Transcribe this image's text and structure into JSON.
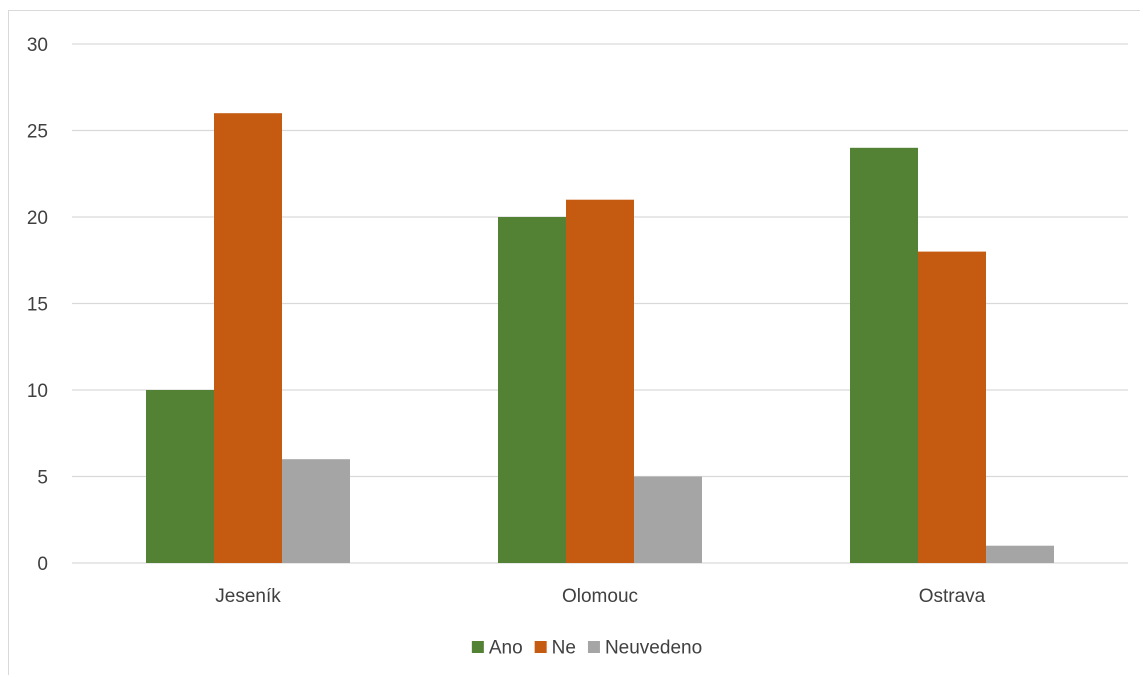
{
  "chart_data": {
    "type": "bar",
    "title": "",
    "xlabel": "",
    "ylabel": "",
    "categories": [
      "Jeseník",
      "Olomouc",
      "Ostrava"
    ],
    "series": [
      {
        "name": "Ano",
        "values": [
          10,
          20,
          24
        ],
        "color": "#548235"
      },
      {
        "name": "Ne",
        "values": [
          26,
          21,
          18
        ],
        "color": "#c55a11"
      },
      {
        "name": "Neuvedeno",
        "values": [
          6,
          5,
          1
        ],
        "color": "#a5a5a5"
      }
    ],
    "ylim": [
      0,
      30
    ],
    "yticks": [
      0,
      5,
      10,
      15,
      20,
      25,
      30
    ],
    "grid": true,
    "legend": "bottom",
    "colors": {
      "grid": "#d9d9d9",
      "axis_text": "#404040"
    }
  }
}
